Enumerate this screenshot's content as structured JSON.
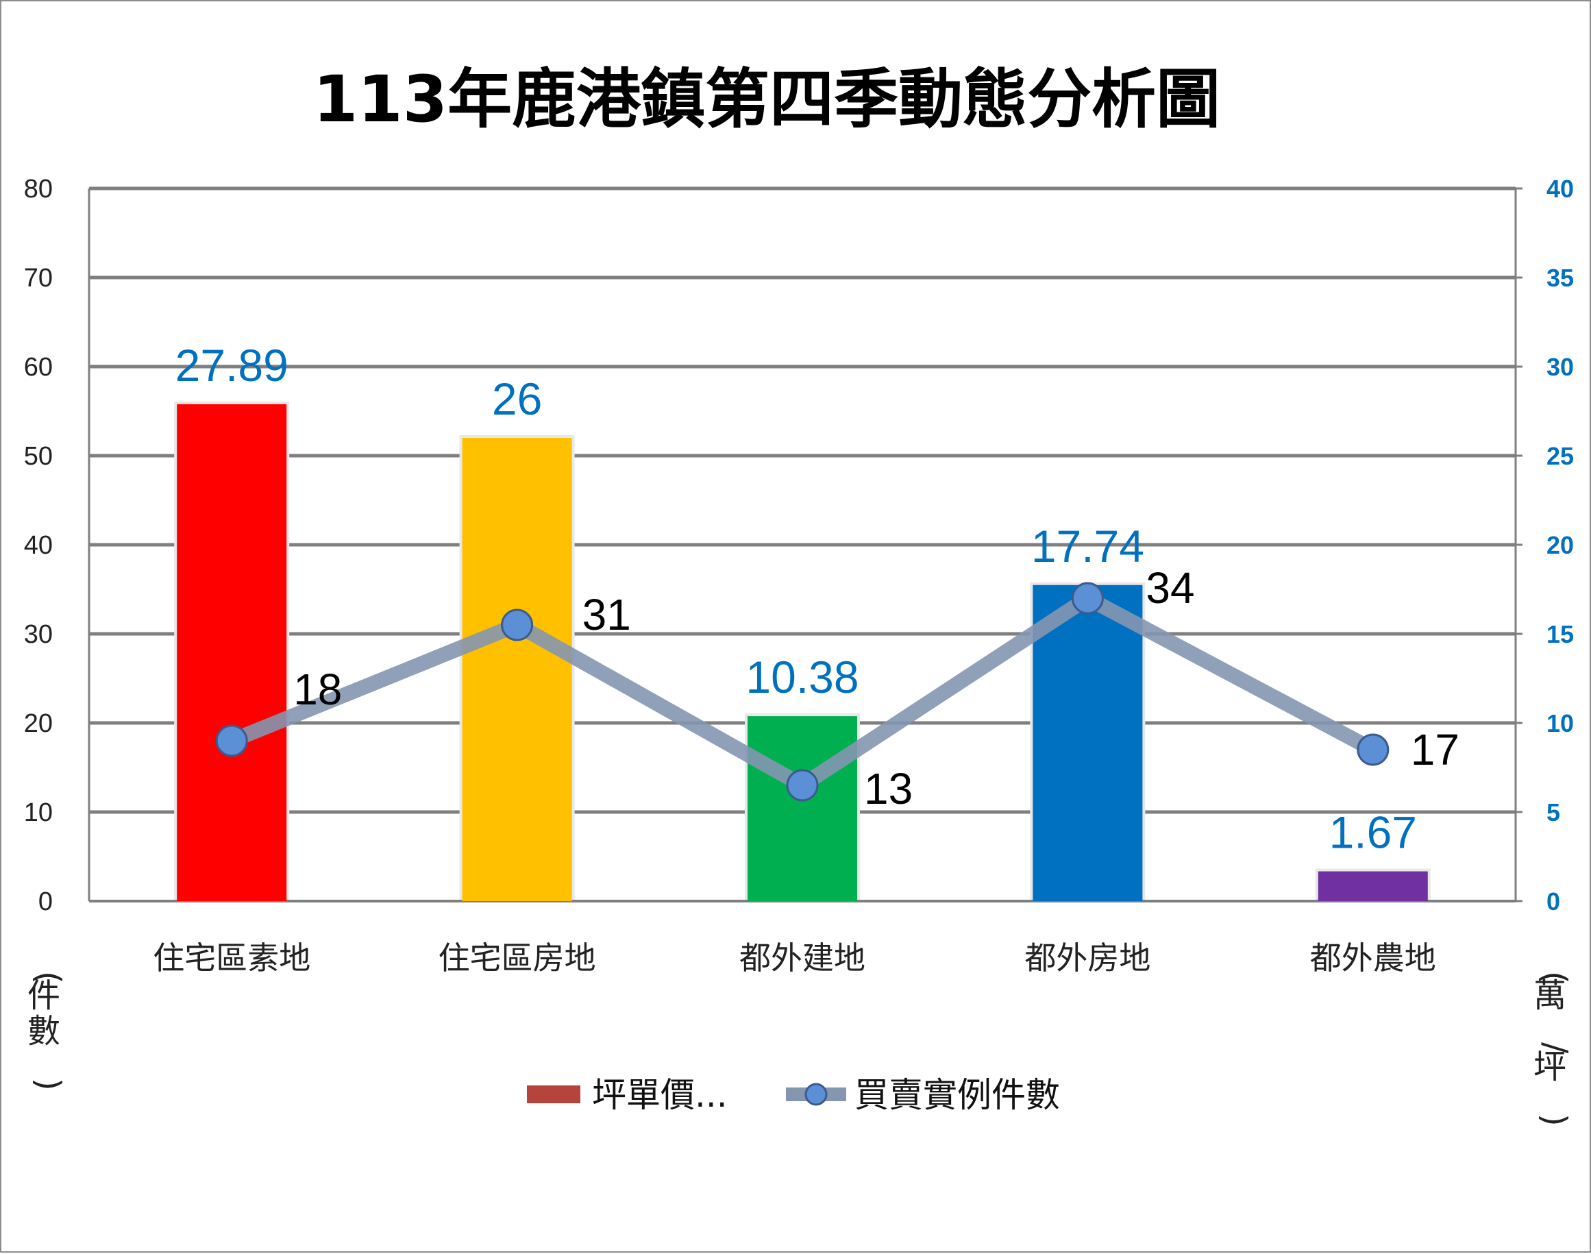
{
  "chart_data": {
    "type": "bar",
    "title": "113年鹿港鎮第四季動態分析圖",
    "categories": [
      "住宅區素地",
      "住宅區房地",
      "都外建地",
      "都外房地",
      "都外農地"
    ],
    "series": [
      {
        "name": "坪單價...",
        "type": "bar",
        "axis": "right",
        "values": [
          27.89,
          26,
          10.38,
          17.74,
          1.67
        ],
        "colors": [
          "#ff0000",
          "#ffc000",
          "#00b050",
          "#0070c0",
          "#7030a0"
        ],
        "label_color": "#0070c0"
      },
      {
        "name": "買賣實例件數",
        "type": "line",
        "axis": "left",
        "values": [
          18,
          31,
          13,
          34,
          17
        ],
        "line_color": "#8496b0",
        "marker_color": "#5b8fd6"
      }
    ],
    "ylabel": "(件數)",
    "y2label": "(萬/坪)",
    "ylim": [
      0,
      80
    ],
    "y2lim": [
      0,
      40
    ],
    "yticks": [
      "0",
      "10",
      "20",
      "30",
      "40",
      "50",
      "60",
      "70",
      "80"
    ],
    "y2ticks": [
      "0",
      "5",
      "10",
      "15",
      "20",
      "25",
      "30",
      "35",
      "40"
    ],
    "grid": true,
    "legend_position": "bottom"
  }
}
